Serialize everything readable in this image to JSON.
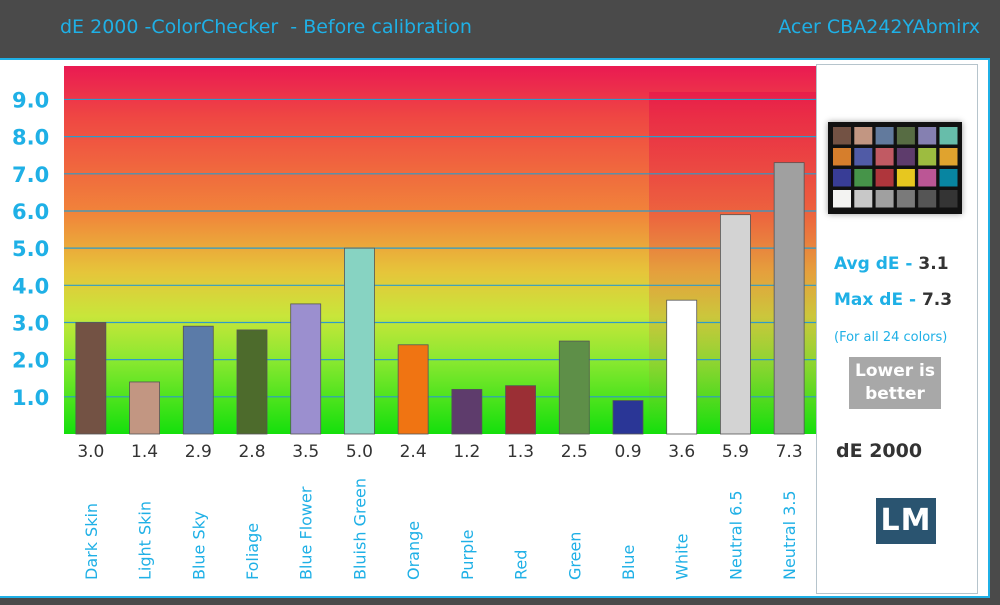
{
  "header": {
    "title": "dE 2000 -ColorChecker  - Before calibration",
    "product": "Acer CBA242YAbmirx"
  },
  "stats": {
    "avg_label": "Avg dE -",
    "avg_value": "3.1",
    "max_label": "Max dE -",
    "max_value": "7.3",
    "note": "(For all 24 colors)",
    "lower_line1": "Lower is",
    "lower_line2": "better",
    "metric": "dE 2000",
    "logo": "LM"
  },
  "colors": {
    "accent": "#1fb0e6",
    "panel_border": "#1fb0e6",
    "background": "#4a4a4a"
  },
  "checker_swatches": [
    "#735244",
    "#c29682",
    "#627a9d",
    "#576c43",
    "#8580b1",
    "#67bdaa",
    "#d67e2c",
    "#505ba6",
    "#c15a63",
    "#5e3c6c",
    "#9dbc40",
    "#e0a32e",
    "#383d96",
    "#469449",
    "#af363c",
    "#e7c71f",
    "#bb5695",
    "#0885a1",
    "#f3f3f2",
    "#c8c8c8",
    "#a0a0a0",
    "#7a7a7a",
    "#555555",
    "#343434"
  ],
  "chart_data": {
    "type": "bar",
    "categories": [
      "Dark Skin",
      "Light Skin",
      "Blue Sky",
      "Foliage",
      "Blue Flower",
      "Bluish Green",
      "Orange",
      "Purple",
      "Red",
      "Green",
      "Blue",
      "White",
      "Neutral 6.5",
      "Neutral 3.5"
    ],
    "values": [
      3.0,
      1.4,
      2.9,
      2.8,
      3.5,
      5.0,
      2.4,
      1.2,
      1.3,
      2.5,
      0.9,
      3.6,
      5.9,
      7.3
    ],
    "value_labels": [
      "3.0",
      "1.4",
      "2.9",
      "2.8",
      "3.5",
      "5.0",
      "2.4",
      "1.2",
      "1.3",
      "2.5",
      "0.9",
      "3.6",
      "5.9",
      "7.3"
    ],
    "bar_colors": [
      "#735244",
      "#c29682",
      "#5b7ba8",
      "#4d6b2c",
      "#9b8fcf",
      "#87d3c2",
      "#f07412",
      "#5e3c6c",
      "#9b2f35",
      "#5e8f48",
      "#2a3696",
      "#ffffff",
      "#d3d3d3",
      "#a0a0a0"
    ],
    "yticks": [
      "1.0",
      "2.0",
      "3.0",
      "4.0",
      "5.0",
      "6.0",
      "7.0",
      "8.0",
      "9.0"
    ],
    "ylim": [
      0,
      9.9
    ],
    "grid": true
  }
}
